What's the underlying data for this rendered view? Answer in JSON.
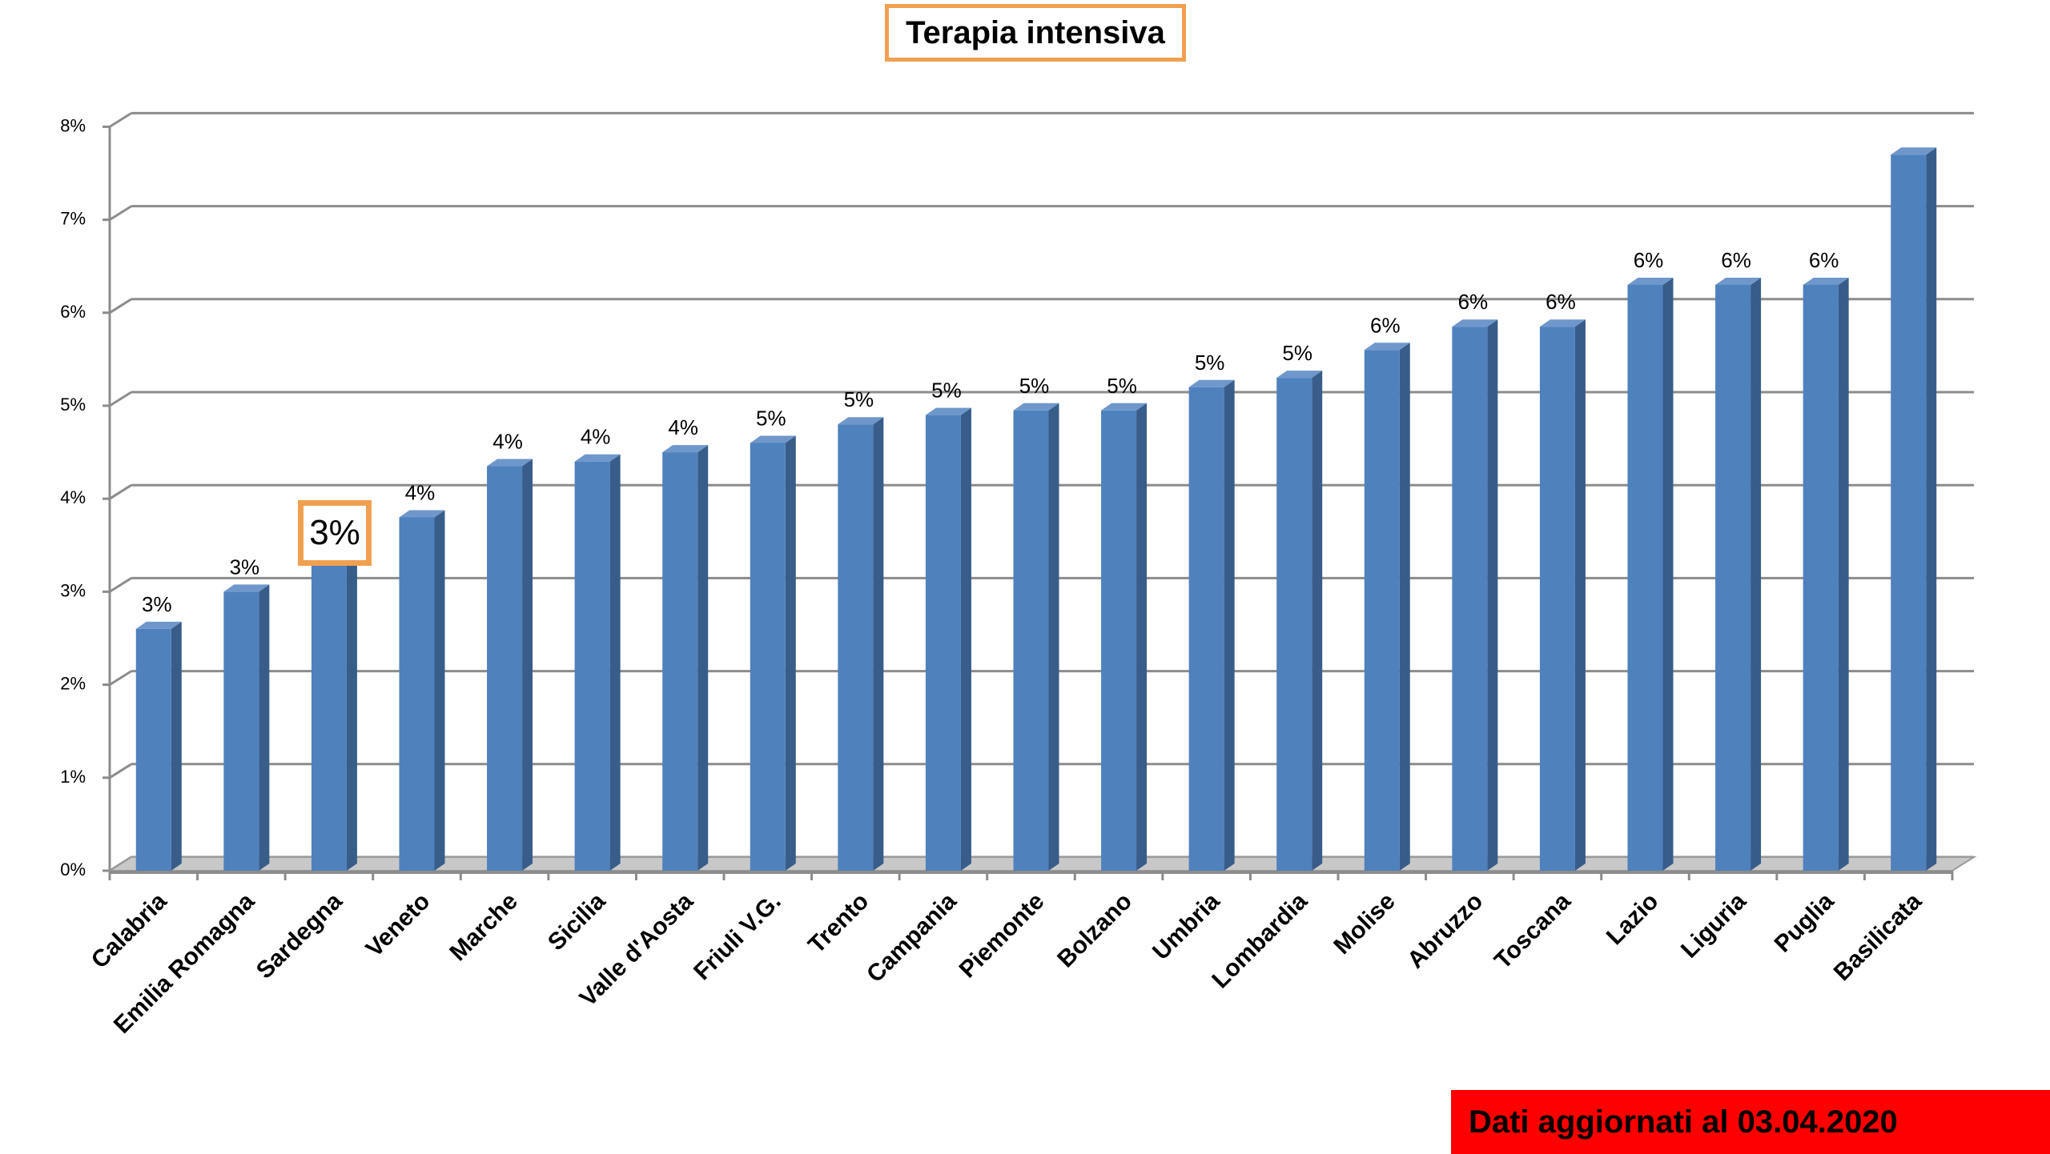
{
  "title": "Terapia intensiva",
  "footer": "Dati aggiornati al 03.04.2020",
  "highlight_label": "3%",
  "colors": {
    "bar_front": "#4f81bd",
    "bar_side": "#385d8a",
    "bar_top": "#6f97cc",
    "accent": "#f0a050",
    "footer_bg": "#ff0000"
  },
  "chart_data": {
    "type": "bar",
    "title": "Terapia intensiva",
    "xlabel": "",
    "ylabel": "",
    "ylim": [
      0,
      8
    ],
    "yticks": [
      "0%",
      "1%",
      "2%",
      "3%",
      "4%",
      "5%",
      "6%",
      "7%",
      "8%"
    ],
    "grid": true,
    "categories": [
      "Calabria",
      "Emilia Romagna",
      "Sardegna",
      "Veneto",
      "Marche",
      "Sicilia",
      "Valle d'Aosta",
      "Friuli V.G.",
      "Trento",
      "Campania",
      "Piemonte",
      "Bolzano",
      "Umbria",
      "Lombardia",
      "Molise",
      "Abruzzo",
      "Toscana",
      "Lazio",
      "Liguria",
      "Puglia",
      "Basilicata"
    ],
    "values": [
      2.6,
      3.0,
      3.3,
      3.8,
      4.35,
      4.4,
      4.5,
      4.6,
      4.8,
      4.9,
      4.95,
      4.95,
      5.2,
      5.3,
      5.6,
      5.85,
      5.85,
      6.3,
      6.3,
      6.3,
      7.7
    ],
    "data_labels": [
      "3%",
      "3%",
      "",
      "4%",
      "4%",
      "4%",
      "4%",
      "5%",
      "5%",
      "5%",
      "5%",
      "5%",
      "5%",
      "5%",
      "6%",
      "6%",
      "6%",
      "6%",
      "6%",
      "6%",
      ""
    ]
  }
}
